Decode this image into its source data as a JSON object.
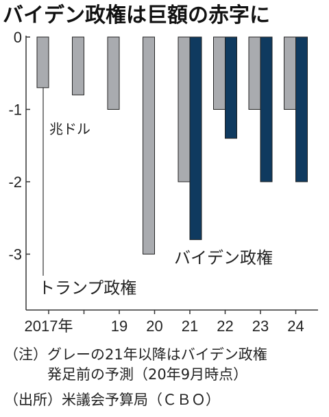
{
  "title": "バイデン政権は巨額の赤字に",
  "unit_label": "兆ドル",
  "chart_data": {
    "type": "bar",
    "categories": [
      "2017年",
      "",
      "19",
      "20",
      "21",
      "22",
      "23",
      "24"
    ],
    "ylim": [
      -3.75,
      0
    ],
    "yticks": [
      0,
      -1,
      -2,
      -3
    ],
    "ytick_labels": [
      "0",
      "-1",
      "-2",
      "-3"
    ],
    "grid": false,
    "series": [
      {
        "values": [
          -0.7,
          -0.8,
          -1.0,
          -3.0,
          -2.0,
          -1.0,
          -1.0,
          -1.0
        ],
        "color": "#a9abaf"
      },
      {
        "values": [
          null,
          null,
          null,
          null,
          -2.8,
          -1.4,
          -2.0,
          -2.0
        ],
        "color": "#0f3a5f"
      }
    ],
    "annotations": [
      "トランプ政権",
      "バイデン政権"
    ]
  },
  "notes": [
    "（注）グレーの21年以降はバイデン政権",
    "　　　発足前の予測（20年9月時点）",
    "（出所）米議会予算局（ＣＢＯ）"
  ]
}
